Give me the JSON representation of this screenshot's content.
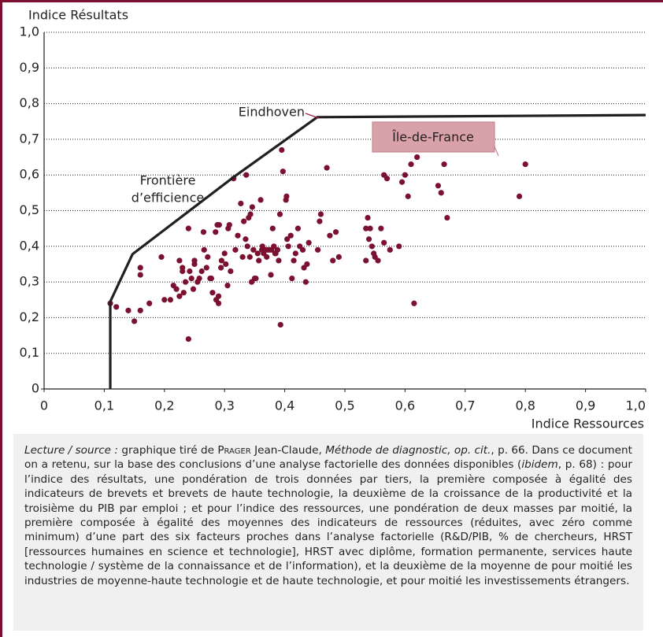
{
  "chart_data": {
    "type": "scatter",
    "ylabel": "Indice Résultats",
    "xlabel": "Indice Ressources",
    "xlim": [
      0,
      1.0
    ],
    "ylim": [
      0,
      1.0
    ],
    "xticks": [
      0,
      {
        "value": 0.1,
        "label": "0,1"
      },
      {
        "value": 0.2,
        "label": "0,2"
      },
      {
        "value": 0.3,
        "label": "0,3"
      },
      {
        "value": 0.4,
        "label": "0,4"
      },
      {
        "value": 0.5,
        "label": "0,5"
      },
      {
        "value": 0.6,
        "label": "0,6"
      },
      {
        "value": 0.7,
        "label": "0,7"
      },
      {
        "value": 0.8,
        "label": "0,8"
      },
      {
        "value": 0.9,
        "label": "0,9"
      },
      {
        "value": 1.0,
        "label": "1,0"
      }
    ],
    "yticks": [
      0,
      {
        "value": 0.1,
        "label": "0,1"
      },
      {
        "value": 0.2,
        "label": "0,2"
      },
      {
        "value": 0.3,
        "label": "0,3"
      },
      {
        "value": 0.4,
        "label": "0,4"
      },
      {
        "value": 0.5,
        "label": "0,5"
      },
      {
        "value": 0.6,
        "label": "0,6"
      },
      {
        "value": 0.7,
        "label": "0,7"
      },
      {
        "value": 0.8,
        "label": "0,8"
      },
      {
        "value": 0.9,
        "label": "0,9"
      },
      {
        "value": 1.0,
        "label": "1,0"
      }
    ],
    "grid": true,
    "series": [
      {
        "color": "#7b1030",
        "x": [
          0.11,
          0.12,
          0.14,
          0.15,
          0.16,
          0.16,
          0.16,
          0.175,
          0.195,
          0.2,
          0.21,
          0.215,
          0.22,
          0.225,
          0.225,
          0.23,
          0.23,
          0.232,
          0.235,
          0.24,
          0.242,
          0.24,
          0.245,
          0.248,
          0.25,
          0.25,
          0.255,
          0.258,
          0.262,
          0.265,
          0.266,
          0.27,
          0.272,
          0.276,
          0.278,
          0.28,
          0.285,
          0.286,
          0.288,
          0.29,
          0.29,
          0.291,
          0.294,
          0.295,
          0.3,
          0.302,
          0.305,
          0.306,
          0.308,
          0.31,
          0.315,
          0.318,
          0.322,
          0.327,
          0.33,
          0.332,
          0.335,
          0.336,
          0.338,
          0.34,
          0.342,
          0.343,
          0.345,
          0.346,
          0.348,
          0.35,
          0.352,
          0.355,
          0.357,
          0.36,
          0.362,
          0.363,
          0.365,
          0.368,
          0.37,
          0.372,
          0.375,
          0.377,
          0.378,
          0.38,
          0.382,
          0.384,
          0.385,
          0.388,
          0.39,
          0.392,
          0.393,
          0.395,
          0.397,
          0.402,
          0.403,
          0.404,
          0.406,
          0.41,
          0.412,
          0.415,
          0.418,
          0.422,
          0.425,
          0.43,
          0.432,
          0.435,
          0.437,
          0.44,
          0.455,
          0.458,
          0.46,
          0.47,
          0.475,
          0.48,
          0.485,
          0.49,
          0.535,
          0.538,
          0.54,
          0.542,
          0.545,
          0.548,
          0.55,
          0.555,
          0.56,
          0.565,
          0.57,
          0.565,
          0.575,
          0.59,
          0.595,
          0.6,
          0.605,
          0.61,
          0.615,
          0.62,
          0.655,
          0.66,
          0.665,
          0.67,
          0.79,
          0.8,
          0.535
        ],
        "values": [
          0.24,
          0.23,
          0.22,
          0.19,
          0.22,
          0.32,
          0.34,
          0.24,
          0.37,
          0.25,
          0.25,
          0.29,
          0.28,
          0.26,
          0.36,
          0.33,
          0.34,
          0.27,
          0.3,
          0.45,
          0.33,
          0.14,
          0.31,
          0.28,
          0.35,
          0.36,
          0.3,
          0.31,
          0.33,
          0.44,
          0.39,
          0.34,
          0.37,
          0.31,
          0.31,
          0.27,
          0.44,
          0.25,
          0.46,
          0.26,
          0.24,
          0.46,
          0.34,
          0.36,
          0.38,
          0.35,
          0.29,
          0.45,
          0.46,
          0.33,
          0.59,
          0.39,
          0.43,
          0.52,
          0.37,
          0.47,
          0.42,
          0.6,
          0.4,
          0.48,
          0.37,
          0.49,
          0.3,
          0.51,
          0.39,
          0.31,
          0.31,
          0.38,
          0.36,
          0.53,
          0.39,
          0.4,
          0.38,
          0.39,
          0.37,
          0.39,
          0.39,
          0.32,
          0.39,
          0.45,
          0.4,
          0.38,
          0.38,
          0.39,
          0.36,
          0.49,
          0.18,
          0.67,
          0.61,
          0.53,
          0.54,
          0.42,
          0.4,
          0.43,
          0.31,
          0.36,
          0.38,
          0.45,
          0.4,
          0.39,
          0.34,
          0.3,
          0.35,
          0.41,
          0.39,
          0.47,
          0.49,
          0.62,
          0.43,
          0.36,
          0.44,
          0.37,
          0.45,
          0.48,
          0.42,
          0.45,
          0.4,
          0.38,
          0.37,
          0.36,
          0.45,
          0.6,
          0.59,
          0.41,
          0.39,
          0.4,
          0.58,
          0.6,
          0.54,
          0.63,
          0.24,
          0.65,
          0.57,
          0.55,
          0.63,
          0.48,
          0.54,
          0.63,
          0.36
        ]
      },
      {
        "type": "line",
        "color": "#231f20",
        "x": [
          0.11,
          0.11,
          0.147,
          0.315,
          0.454,
          1.0
        ],
        "values": [
          0,
          0.245,
          0.378,
          0.594,
          0.762,
          0.768
        ]
      }
    ],
    "annotations": [
      {
        "text": "Eindhoven",
        "color": "#9b1f45"
      },
      {
        "text": "Île-de-France",
        "color": "#ffffff",
        "box": "#d9a1a8"
      },
      {
        "text": "Frontière",
        "color": "#231f20"
      },
      {
        "text": "d’efficience",
        "color": "#231f20"
      }
    ]
  },
  "caption": [
    {
      "text": "Lecture / source :",
      "style": "italic"
    },
    {
      "text": " graphique tiré de ",
      "style": "normal"
    },
    {
      "text": "Prager",
      "style": "smallcaps"
    },
    {
      "text": " Jean-Claude, ",
      "style": "normal"
    },
    {
      "text": "Méthode de diagnostic, op. cit.",
      "style": "italic"
    },
    {
      "text": ", p. 66. Dans ce document on a retenu, sur la base des conclusions d’une analyse factorielle des données disponibles (",
      "style": "normal"
    },
    {
      "text": "ibidem",
      "style": "italic"
    },
    {
      "text": ", p. 68) : pour l’indice des résultats, une pondération de trois données par tiers, la première composée à égalité des indicateurs de brevets et brevets de haute technologie, la deuxième de la croissance de la productivité et la troisième du PIB par emploi ; et pour l’indice des ressources, une pondération de deux masses par moitié, la première composée à égalité des moyennes des indicateurs de ressources (réduites, avec zéro comme minimum) d’une part des six facteurs proches dans l’analyse factorielle (R&D/PIB, % de chercheurs, HRST [ressources humaines en science et technologie], HRST avec diplôme, formation permanente, services haute technologie / système de la connaissance et de l’information), et la deuxième de la moyenne de pour moitié les industries de moyenne-haute technologie et de haute technologie, et pour moitié les investissements étrangers.",
      "style": "normal"
    }
  ]
}
